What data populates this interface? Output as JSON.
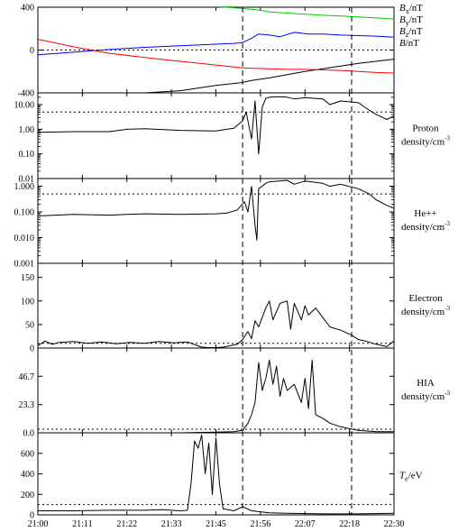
{
  "chart_data": {
    "type": "line",
    "x_ticks": [
      "21:00",
      "21:11",
      "21:22",
      "21:33",
      "21:45",
      "21:56",
      "22:07",
      "22:18",
      "22:30"
    ],
    "vlines_x": [
      0.575,
      0.881
    ],
    "panels": [
      {
        "id": "magnetic-field",
        "scale": "linear",
        "ylim": [
          -400,
          400
        ],
        "y_ticks": [
          {
            "v": -400,
            "label": "-400"
          },
          {
            "v": 0,
            "label": "0"
          },
          {
            "v": 400,
            "label": "400"
          }
        ],
        "hline": 0,
        "legend": [
          {
            "label": "Bx/nT",
            "sym": "B",
            "sub": "x",
            "unit": "/nT",
            "color": "#000000"
          },
          {
            "label": "By/nT",
            "sym": "B",
            "sub": "y",
            "unit": "/nT",
            "color": "#0000ff"
          },
          {
            "label": "Bz/nT",
            "sym": "B",
            "sub": "z",
            "unit": "/nT",
            "color": "#ff0000"
          },
          {
            "label": "B/nT",
            "sym": "B",
            "sub": "",
            "unit": "/nT",
            "color": "#00cc00"
          }
        ],
        "series": [
          {
            "name": "Bx",
            "color": "#000000",
            "x": [
              0.0,
              0.1,
              0.2,
              0.3,
              0.4,
              0.5,
              0.57,
              0.6,
              0.65,
              0.7,
              0.75,
              0.8,
              0.85,
              0.9,
              0.95,
              1.0
            ],
            "y": [
              -460,
              -440,
              -420,
              -400,
              -380,
              -330,
              -305,
              -285,
              -260,
              -230,
              -200,
              -175,
              -150,
              -125,
              -105,
              -85
            ]
          },
          {
            "name": "By",
            "color": "#0000ff",
            "x": [
              0.0,
              0.1,
              0.2,
              0.3,
              0.4,
              0.5,
              0.55,
              0.575,
              0.6,
              0.62,
              0.65,
              0.68,
              0.72,
              0.76,
              0.8,
              0.85,
              0.9,
              0.95,
              1.0
            ],
            "y": [
              -45,
              -20,
              5,
              25,
              40,
              55,
              62,
              70,
              110,
              150,
              140,
              125,
              165,
              150,
              150,
              140,
              135,
              130,
              120
            ]
          },
          {
            "name": "Bz",
            "color": "#ff0000",
            "x": [
              0.0,
              0.1,
              0.2,
              0.3,
              0.4,
              0.5,
              0.57,
              0.6,
              0.65,
              0.7,
              0.75,
              0.8,
              0.85,
              0.9,
              0.95,
              1.0
            ],
            "y": [
              100,
              30,
              -30,
              -70,
              -105,
              -140,
              -165,
              -170,
              -175,
              -180,
              -180,
              -185,
              -190,
              -200,
              -210,
              -215
            ]
          },
          {
            "name": "B",
            "color": "#00cc00",
            "x": [
              0.0,
              0.3,
              0.4,
              0.5,
              0.57,
              0.62,
              0.65,
              0.7,
              0.75,
              0.8,
              0.85,
              0.9,
              0.95,
              1.0
            ],
            "y": [
              520,
              440,
              425,
              405,
              390,
              375,
              355,
              345,
              335,
              325,
              318,
              310,
              300,
              290
            ]
          }
        ]
      },
      {
        "id": "proton-density",
        "scale": "log",
        "ylim": [
          0.01,
          30
        ],
        "y_ticks": [
          {
            "v": 0.01,
            "label": "0.01"
          },
          {
            "v": 0.1,
            "label": "0.10"
          },
          {
            "v": 1,
            "label": "1.00"
          },
          {
            "v": 10,
            "label": "10.00"
          }
        ],
        "hline": 5,
        "label_lines": [
          "Proton",
          "density/cm"
        ],
        "label_sup": "-3",
        "series": [
          {
            "name": "Proton density",
            "color": "#000000",
            "x": [
              0.0,
              0.1,
              0.2,
              0.25,
              0.3,
              0.4,
              0.5,
              0.53,
              0.55,
              0.575,
              0.585,
              0.6,
              0.61,
              0.62,
              0.63,
              0.64,
              0.65,
              0.68,
              0.7,
              0.72,
              0.75,
              0.8,
              0.82,
              0.85,
              0.9,
              0.93,
              0.95,
              0.98,
              1.0
            ],
            "y": [
              0.75,
              0.8,
              0.8,
              1.0,
              1.05,
              0.9,
              0.85,
              1.0,
              1.1,
              2.2,
              5,
              0.4,
              14,
              0.1,
              8,
              18,
              20,
              21,
              20,
              17,
              19,
              17,
              10,
              14,
              12,
              6,
              4,
              2.5,
              3.5
            ]
          }
        ]
      },
      {
        "id": "he-density",
        "scale": "log",
        "ylim": [
          0.001,
          2.0
        ],
        "y_ticks": [
          {
            "v": 0.001,
            "label": "0.001"
          },
          {
            "v": 0.01,
            "label": "0.010"
          },
          {
            "v": 0.1,
            "label": "0.100"
          },
          {
            "v": 1,
            "label": "1.000"
          }
        ],
        "hline": 0.5,
        "label_lines": [
          "He++",
          "density/cm"
        ],
        "label_sup": "-3",
        "series": [
          {
            "name": "He++ density",
            "color": "#000000",
            "x": [
              0.0,
              0.1,
              0.2,
              0.25,
              0.3,
              0.4,
              0.5,
              0.53,
              0.56,
              0.58,
              0.59,
              0.6,
              0.61,
              0.615,
              0.62,
              0.64,
              0.65,
              0.7,
              0.72,
              0.75,
              0.8,
              0.82,
              0.85,
              0.9,
              0.93,
              0.95,
              0.98,
              1.0
            ],
            "y": [
              0.07,
              0.08,
              0.075,
              0.08,
              0.085,
              0.08,
              0.085,
              0.09,
              0.12,
              0.25,
              0.1,
              1.0,
              0.03,
              0.008,
              0.8,
              1.3,
              1.5,
              1.7,
              1.2,
              1.6,
              1.3,
              1.0,
              1.2,
              0.8,
              0.5,
              0.3,
              0.18,
              0.14
            ]
          }
        ]
      },
      {
        "id": "electron-density",
        "scale": "linear",
        "ylim": [
          0,
          180
        ],
        "y_ticks": [
          {
            "v": 0,
            "label": "0"
          },
          {
            "v": 50,
            "label": "50"
          },
          {
            "v": 100,
            "label": "100"
          },
          {
            "v": 150,
            "label": "150"
          }
        ],
        "hline": 10,
        "label_lines": [
          "Electron",
          "density/cm"
        ],
        "label_sup": "-3",
        "series": [
          {
            "name": "Electron density",
            "color": "#000000",
            "x": [
              0.0,
              0.02,
              0.04,
              0.06,
              0.1,
              0.14,
              0.18,
              0.22,
              0.26,
              0.3,
              0.34,
              0.38,
              0.42,
              0.46,
              0.48,
              0.5,
              0.52,
              0.54,
              0.56,
              0.575,
              0.59,
              0.6,
              0.61,
              0.62,
              0.64,
              0.65,
              0.66,
              0.68,
              0.7,
              0.71,
              0.72,
              0.74,
              0.75,
              0.76,
              0.78,
              0.8,
              0.82,
              0.85,
              0.88,
              0.9,
              0.92,
              0.95,
              0.98,
              1.0
            ],
            "y": [
              5,
              15,
              8,
              12,
              14,
              10,
              13,
              9,
              12,
              10,
              14,
              11,
              13,
              2,
              1,
              1,
              2,
              5,
              8,
              18,
              35,
              20,
              58,
              45,
              85,
              100,
              60,
              95,
              100,
              40,
              95,
              60,
              90,
              70,
              85,
              65,
              45,
              38,
              28,
              18,
              15,
              8,
              3,
              15
            ]
          }
        ]
      },
      {
        "id": "hia-density",
        "scale": "linear",
        "ylim": [
          0,
          70
        ],
        "y_ticks": [
          {
            "v": 0,
            "label": "0.0"
          },
          {
            "v": 23.3,
            "label": "23.3"
          },
          {
            "v": 46.7,
            "label": "46.7"
          }
        ],
        "hline": 3,
        "label_lines": [
          "HIA",
          "density/cm"
        ],
        "label_sup": "-3",
        "series": [
          {
            "name": "HIA density",
            "color": "#000000",
            "x": [
              0.0,
              0.1,
              0.2,
              0.3,
              0.4,
              0.5,
              0.55,
              0.575,
              0.59,
              0.6,
              0.61,
              0.62,
              0.63,
              0.64,
              0.65,
              0.66,
              0.67,
              0.68,
              0.69,
              0.7,
              0.72,
              0.74,
              0.75,
              0.76,
              0.77,
              0.78,
              0.8,
              0.82,
              0.85,
              0.9,
              0.95,
              1.0
            ],
            "y": [
              0,
              0,
              0,
              0,
              0,
              0.5,
              1,
              2,
              8,
              15,
              25,
              58,
              35,
              45,
              60,
              40,
              55,
              30,
              45,
              35,
              40,
              25,
              45,
              20,
              60,
              15,
              12,
              8,
              5,
              2,
              1,
              1
            ]
          }
        ]
      },
      {
        "id": "electron-temperature",
        "scale": "linear",
        "ylim": [
          0,
          800
        ],
        "y_ticks": [
          {
            "v": 0,
            "label": "0"
          },
          {
            "v": 200,
            "label": "200"
          },
          {
            "v": 400,
            "label": "400"
          },
          {
            "v": 600,
            "label": "600"
          }
        ],
        "hline": 100,
        "legend": [
          {
            "label": "Te/eV",
            "sym": "T",
            "sub": "e",
            "unit": "/eV",
            "color": "#000000"
          }
        ],
        "series": [
          {
            "name": "Te",
            "color": "#000000",
            "x": [
              0.0,
              0.1,
              0.2,
              0.3,
              0.35,
              0.4,
              0.42,
              0.43,
              0.44,
              0.45,
              0.46,
              0.47,
              0.48,
              0.49,
              0.5,
              0.51,
              0.52,
              0.55,
              0.575,
              0.6,
              0.65,
              0.7,
              0.8,
              0.9,
              1.0
            ],
            "y": [
              40,
              40,
              45,
              45,
              50,
              40,
              45,
              300,
              720,
              650,
              780,
              400,
              700,
              200,
              750,
              300,
              60,
              40,
              80,
              40,
              20,
              15,
              10,
              10,
              15
            ]
          }
        ]
      }
    ]
  }
}
